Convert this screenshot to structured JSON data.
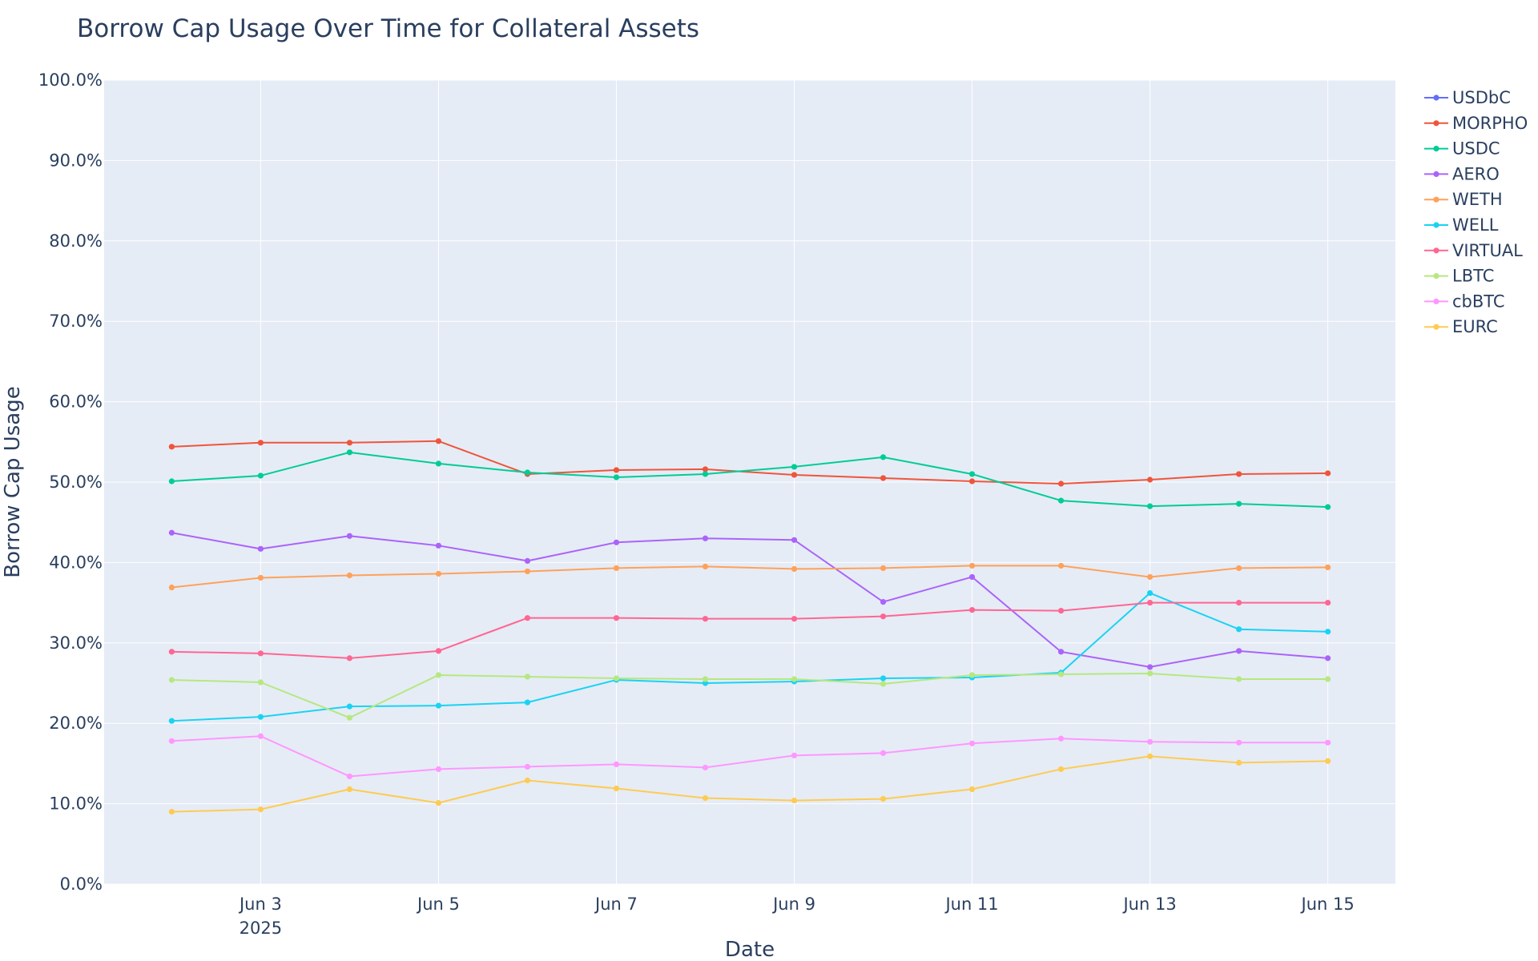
{
  "chart_data": {
    "type": "line",
    "title": "Borrow Cap Usage Over Time for Collateral Assets",
    "xlabel": "Date",
    "ylabel": "Borrow Cap Usage",
    "ylim": [
      0,
      100
    ],
    "y_ticks": [
      "0.0%",
      "10.0%",
      "20.0%",
      "30.0%",
      "40.0%",
      "50.0%",
      "60.0%",
      "70.0%",
      "80.0%",
      "90.0%",
      "100.0%"
    ],
    "x_ticks": [
      "Jun 3",
      "Jun 5",
      "Jun 7",
      "Jun 9",
      "Jun 11",
      "Jun 13",
      "Jun 15"
    ],
    "x_year_label": "2025",
    "grid": true,
    "legend_position": "right",
    "background_color": "#e5ecf6",
    "x": [
      "2025-06-02",
      "2025-06-03",
      "2025-06-04",
      "2025-06-05",
      "2025-06-06",
      "2025-06-07",
      "2025-06-08",
      "2025-06-09",
      "2025-06-10",
      "2025-06-11",
      "2025-06-12",
      "2025-06-13",
      "2025-06-14",
      "2025-06-15"
    ],
    "series": [
      {
        "name": "USDbC",
        "color": "#636efa",
        "values": [
          null,
          null,
          null,
          null,
          null,
          null,
          null,
          null,
          null,
          null,
          null,
          null,
          null,
          null
        ]
      },
      {
        "name": "MORPHO",
        "color": "#EF553B",
        "values": [
          54.4,
          54.9,
          54.9,
          55.1,
          51.0,
          51.5,
          51.6,
          50.9,
          50.5,
          50.1,
          49.8,
          50.3,
          51.0,
          51.1
        ]
      },
      {
        "name": "USDC",
        "color": "#00cc96",
        "values": [
          50.1,
          50.8,
          53.7,
          52.3,
          51.2,
          50.6,
          51.0,
          51.9,
          53.1,
          51.0,
          47.7,
          47.0,
          47.3,
          46.9
        ]
      },
      {
        "name": "AERO",
        "color": "#ab63fa",
        "values": [
          43.7,
          41.7,
          43.3,
          42.1,
          40.2,
          42.5,
          43.0,
          42.8,
          35.1,
          38.2,
          28.9,
          27.0,
          29.0,
          28.1
        ]
      },
      {
        "name": "WETH",
        "color": "#FFA15A",
        "values": [
          36.9,
          38.1,
          38.4,
          38.6,
          38.9,
          39.3,
          39.5,
          39.2,
          39.3,
          39.6,
          39.6,
          38.2,
          39.3,
          39.4
        ]
      },
      {
        "name": "WELL",
        "color": "#19d3f3",
        "values": [
          20.3,
          20.8,
          22.1,
          22.2,
          22.6,
          25.4,
          25.0,
          25.2,
          25.6,
          25.7,
          26.3,
          36.2,
          31.7,
          31.4
        ]
      },
      {
        "name": "VIRTUAL",
        "color": "#FF6692",
        "values": [
          28.9,
          28.7,
          28.1,
          29.0,
          33.1,
          33.1,
          33.0,
          33.0,
          33.3,
          34.1,
          34.0,
          35.0,
          35.0,
          35.0
        ]
      },
      {
        "name": "LBTC",
        "color": "#B6E880",
        "values": [
          25.4,
          25.1,
          20.7,
          26.0,
          25.8,
          25.6,
          25.5,
          25.5,
          24.9,
          26.0,
          26.1,
          26.2,
          25.5,
          25.5
        ]
      },
      {
        "name": "cbBTC",
        "color": "#FF97FF",
        "values": [
          17.8,
          18.4,
          13.4,
          14.3,
          14.6,
          14.9,
          14.5,
          16.0,
          16.3,
          17.5,
          18.1,
          17.7,
          17.6,
          17.6
        ]
      },
      {
        "name": "EURC",
        "color": "#FECB52",
        "values": [
          9.0,
          9.3,
          11.8,
          10.1,
          12.9,
          11.9,
          10.7,
          10.4,
          10.6,
          11.8,
          14.3,
          15.9,
          15.1,
          15.3
        ]
      }
    ]
  }
}
